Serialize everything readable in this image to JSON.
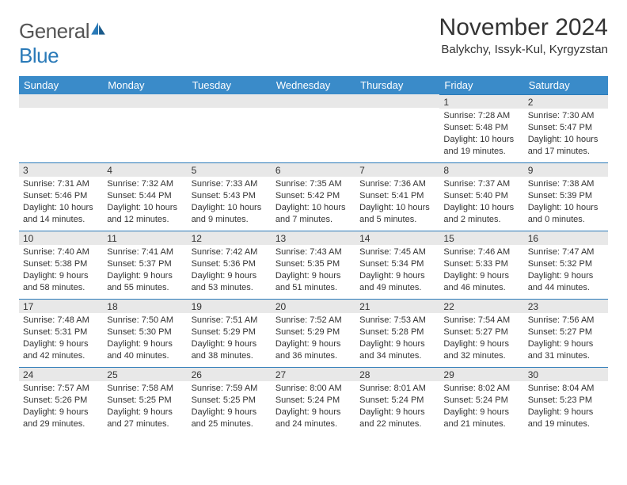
{
  "logo": {
    "text1": "General",
    "text2": "Blue"
  },
  "title": "November 2024",
  "location": "Balykchy, Issyk-Kul, Kyrgyzstan",
  "colors": {
    "header_bg": "#3a8bc9",
    "daynum_bg": "#e8e8e8",
    "rule": "#2a7ab8"
  },
  "weekday_labels": [
    "Sunday",
    "Monday",
    "Tuesday",
    "Wednesday",
    "Thursday",
    "Friday",
    "Saturday"
  ],
  "first_weekday_index": 5,
  "days": [
    {
      "n": 1,
      "sr": "7:28 AM",
      "ss": "5:48 PM",
      "dl": "10 hours and 19 minutes."
    },
    {
      "n": 2,
      "sr": "7:30 AM",
      "ss": "5:47 PM",
      "dl": "10 hours and 17 minutes."
    },
    {
      "n": 3,
      "sr": "7:31 AM",
      "ss": "5:46 PM",
      "dl": "10 hours and 14 minutes."
    },
    {
      "n": 4,
      "sr": "7:32 AM",
      "ss": "5:44 PM",
      "dl": "10 hours and 12 minutes."
    },
    {
      "n": 5,
      "sr": "7:33 AM",
      "ss": "5:43 PM",
      "dl": "10 hours and 9 minutes."
    },
    {
      "n": 6,
      "sr": "7:35 AM",
      "ss": "5:42 PM",
      "dl": "10 hours and 7 minutes."
    },
    {
      "n": 7,
      "sr": "7:36 AM",
      "ss": "5:41 PM",
      "dl": "10 hours and 5 minutes."
    },
    {
      "n": 8,
      "sr": "7:37 AM",
      "ss": "5:40 PM",
      "dl": "10 hours and 2 minutes."
    },
    {
      "n": 9,
      "sr": "7:38 AM",
      "ss": "5:39 PM",
      "dl": "10 hours and 0 minutes."
    },
    {
      "n": 10,
      "sr": "7:40 AM",
      "ss": "5:38 PM",
      "dl": "9 hours and 58 minutes."
    },
    {
      "n": 11,
      "sr": "7:41 AM",
      "ss": "5:37 PM",
      "dl": "9 hours and 55 minutes."
    },
    {
      "n": 12,
      "sr": "7:42 AM",
      "ss": "5:36 PM",
      "dl": "9 hours and 53 minutes."
    },
    {
      "n": 13,
      "sr": "7:43 AM",
      "ss": "5:35 PM",
      "dl": "9 hours and 51 minutes."
    },
    {
      "n": 14,
      "sr": "7:45 AM",
      "ss": "5:34 PM",
      "dl": "9 hours and 49 minutes."
    },
    {
      "n": 15,
      "sr": "7:46 AM",
      "ss": "5:33 PM",
      "dl": "9 hours and 46 minutes."
    },
    {
      "n": 16,
      "sr": "7:47 AM",
      "ss": "5:32 PM",
      "dl": "9 hours and 44 minutes."
    },
    {
      "n": 17,
      "sr": "7:48 AM",
      "ss": "5:31 PM",
      "dl": "9 hours and 42 minutes."
    },
    {
      "n": 18,
      "sr": "7:50 AM",
      "ss": "5:30 PM",
      "dl": "9 hours and 40 minutes."
    },
    {
      "n": 19,
      "sr": "7:51 AM",
      "ss": "5:29 PM",
      "dl": "9 hours and 38 minutes."
    },
    {
      "n": 20,
      "sr": "7:52 AM",
      "ss": "5:29 PM",
      "dl": "9 hours and 36 minutes."
    },
    {
      "n": 21,
      "sr": "7:53 AM",
      "ss": "5:28 PM",
      "dl": "9 hours and 34 minutes."
    },
    {
      "n": 22,
      "sr": "7:54 AM",
      "ss": "5:27 PM",
      "dl": "9 hours and 32 minutes."
    },
    {
      "n": 23,
      "sr": "7:56 AM",
      "ss": "5:27 PM",
      "dl": "9 hours and 31 minutes."
    },
    {
      "n": 24,
      "sr": "7:57 AM",
      "ss": "5:26 PM",
      "dl": "9 hours and 29 minutes."
    },
    {
      "n": 25,
      "sr": "7:58 AM",
      "ss": "5:25 PM",
      "dl": "9 hours and 27 minutes."
    },
    {
      "n": 26,
      "sr": "7:59 AM",
      "ss": "5:25 PM",
      "dl": "9 hours and 25 minutes."
    },
    {
      "n": 27,
      "sr": "8:00 AM",
      "ss": "5:24 PM",
      "dl": "9 hours and 24 minutes."
    },
    {
      "n": 28,
      "sr": "8:01 AM",
      "ss": "5:24 PM",
      "dl": "9 hours and 22 minutes."
    },
    {
      "n": 29,
      "sr": "8:02 AM",
      "ss": "5:24 PM",
      "dl": "9 hours and 21 minutes."
    },
    {
      "n": 30,
      "sr": "8:04 AM",
      "ss": "5:23 PM",
      "dl": "9 hours and 19 minutes."
    }
  ],
  "labels": {
    "sunrise": "Sunrise: ",
    "sunset": "Sunset: ",
    "daylight": "Daylight: "
  }
}
